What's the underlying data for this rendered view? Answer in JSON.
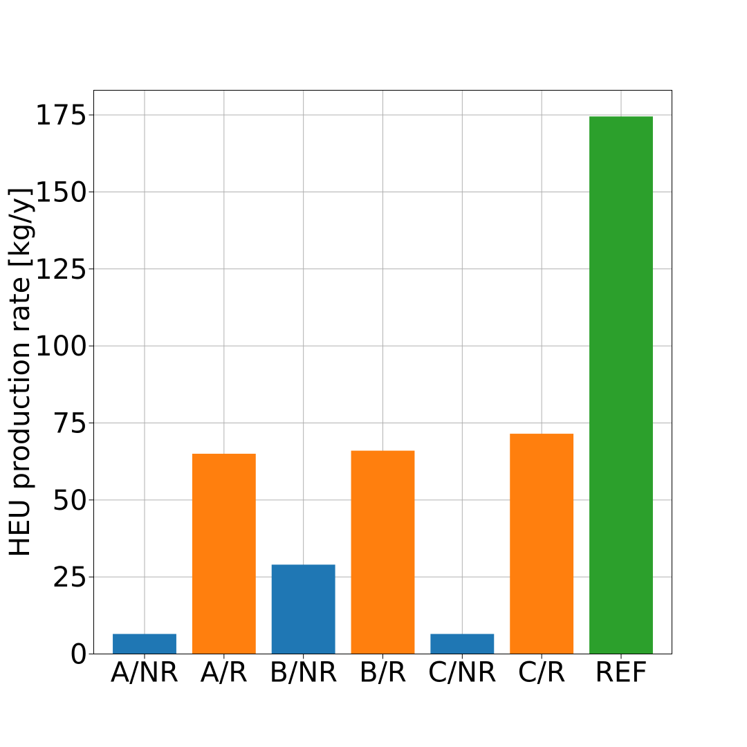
{
  "chart_data": {
    "type": "bar",
    "title": "",
    "xlabel": "",
    "ylabel": "HEU production rate [kg/y]",
    "categories": [
      "A/NR",
      "A/R",
      "B/NR",
      "B/R",
      "C/NR",
      "C/R",
      "REF"
    ],
    "values": [
      6.5,
      65,
      29,
      66,
      6.5,
      71.5,
      174.5
    ],
    "bar_colors": [
      "#1f77b4",
      "#ff7f0e",
      "#1f77b4",
      "#ff7f0e",
      "#1f77b4",
      "#ff7f0e",
      "#2ca02c"
    ],
    "ylim": [
      0,
      183
    ],
    "yticks": [
      0,
      25,
      50,
      75,
      100,
      125,
      150,
      175
    ],
    "grid": true,
    "legend": "none"
  }
}
